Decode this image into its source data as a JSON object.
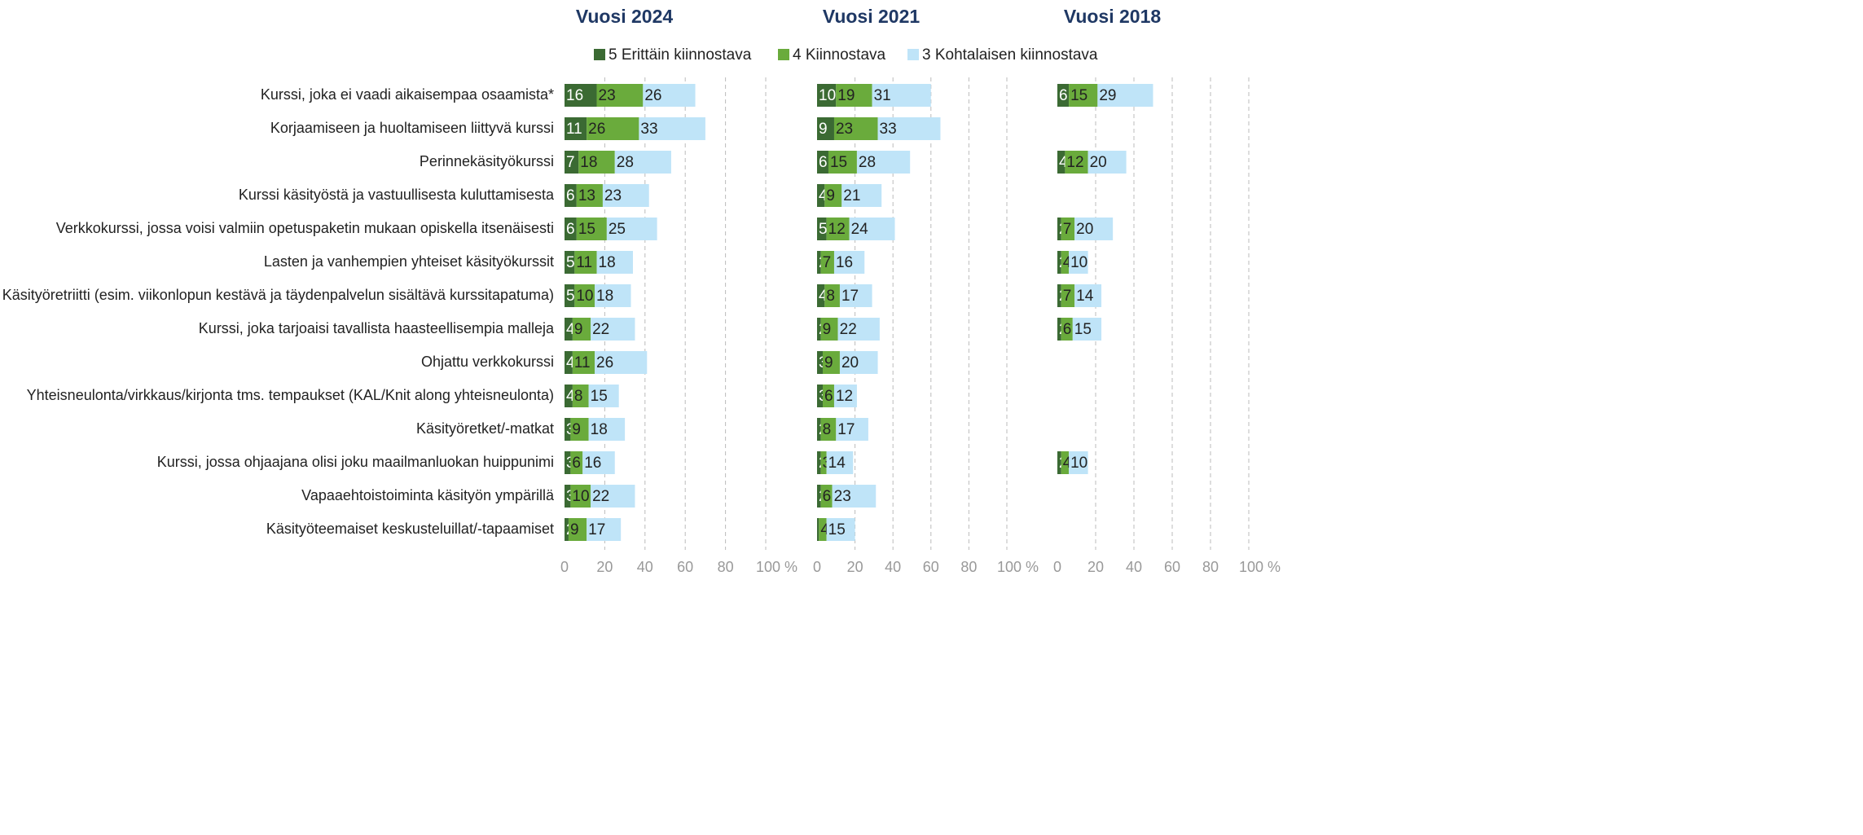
{
  "chart_data": [
    {
      "type": "bar",
      "title": "Vuosi 2024",
      "categories": [
        "Kurssi, joka ei vaadi aikaisempaa osaamista*",
        "Korjaamiseen ja huoltamiseen liittyvä kurssi",
        "Perinnekäsityökurssi",
        "Kurssi käsityöstä ja vastuullisesta kuluttamisesta",
        "Verkkokurssi, jossa voisi valmiin opetuspaketin mukaan opiskella itsenäisesti",
        "Lasten ja vanhempien yhteiset käsityökurssit",
        "Käsityöretriitti (esim. viikonlopun kestävä ja täydenpalvelun sisältävä kurssitapatuma)",
        "Kurssi, joka tarjoaisi tavallista haasteellisempia malleja",
        "Ohjattu verkkokurssi",
        "Yhteisneulonta/virkkaus/kirjonta tms. tempaukset (KAL/Knit along yhteisneulonta)",
        "Käsityöretket/-matkat",
        "Kurssi, jossa ohjaajana olisi joku maailmanluokan huippunimi",
        "Vapaaehtoistoiminta käsityön ympärillä",
        "Käsityöteemaiset keskusteluillat/-tapaamiset"
      ],
      "series": [
        {
          "name": "5 Erittäin kiinnostava",
          "color": "#3b6a33",
          "values": [
            16,
            11,
            7,
            6,
            6,
            5,
            5,
            4,
            4,
            4,
            3,
            3,
            3,
            2
          ]
        },
        {
          "name": "4 Kiinnostava",
          "color": "#6aab3c",
          "values": [
            23,
            26,
            18,
            13,
            15,
            11,
            10,
            9,
            11,
            8,
            9,
            6,
            10,
            9
          ]
        },
        {
          "name": "3 Kohtalaisen kiinnostava",
          "color": "#bfe4f8",
          "values": [
            26,
            33,
            28,
            23,
            25,
            18,
            18,
            22,
            26,
            15,
            18,
            16,
            22,
            17
          ]
        }
      ],
      "xlim": [
        0,
        100
      ],
      "xticks": [
        0,
        20,
        40,
        60,
        80,
        {
          "value": 100,
          "label": "100 %"
        }
      ],
      "grid": true
    },
    {
      "type": "bar",
      "title": "Vuosi 2021",
      "series": [
        {
          "color": "#3b6a33",
          "values": [
            10,
            9,
            6,
            4,
            5,
            2,
            4,
            2,
            3,
            3,
            2,
            2,
            2,
            1
          ]
        },
        {
          "color": "#6aab3c",
          "values": [
            19,
            23,
            15,
            9,
            12,
            7,
            8,
            9,
            9,
            6,
            8,
            3,
            6,
            4
          ]
        },
        {
          "color": "#bfe4f8",
          "values": [
            31,
            33,
            28,
            21,
            24,
            16,
            17,
            22,
            20,
            12,
            17,
            14,
            23,
            15
          ]
        }
      ],
      "xlim": [
        0,
        100
      ],
      "xticks": [
        0,
        20,
        40,
        60,
        80,
        {
          "value": 100,
          "label": "100 %"
        }
      ],
      "grid": true
    },
    {
      "type": "bar",
      "title": "Vuosi 2018",
      "series": [
        {
          "color": "#3b6a33",
          "values": [
            6,
            null,
            4,
            null,
            2,
            2,
            2,
            2,
            null,
            null,
            null,
            2,
            null,
            null
          ]
        },
        {
          "color": "#6aab3c",
          "values": [
            15,
            null,
            12,
            null,
            7,
            4,
            7,
            6,
            null,
            null,
            null,
            4,
            null,
            null
          ]
        },
        {
          "color": "#bfe4f8",
          "values": [
            29,
            null,
            20,
            null,
            20,
            10,
            14,
            15,
            null,
            null,
            null,
            10,
            null,
            null
          ]
        }
      ],
      "xlim": [
        0,
        100
      ],
      "xticks": [
        0,
        20,
        40,
        60,
        80,
        {
          "value": 100,
          "label": "100 %"
        }
      ],
      "grid": true
    }
  ]
}
